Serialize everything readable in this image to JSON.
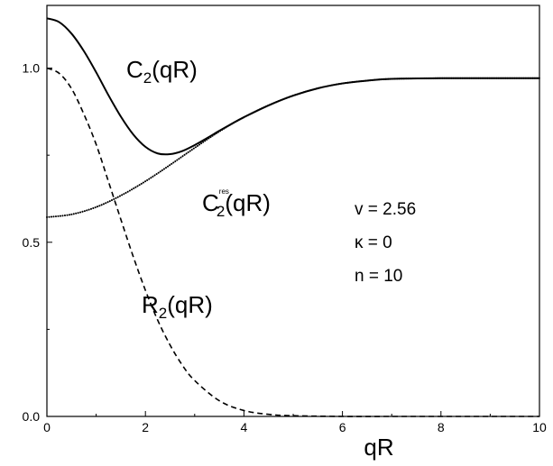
{
  "chart_data": {
    "type": "line",
    "title": "",
    "xlabel": "qR",
    "ylabel": "",
    "xlim": [
      0,
      10
    ],
    "ylim": [
      0,
      1.18
    ],
    "x_ticks": [
      "0",
      "2",
      "4",
      "6",
      "8",
      "10"
    ],
    "y_ticks": [
      "0.0",
      "0.5",
      "1.0"
    ],
    "grid": false,
    "series": [
      {
        "name": "C2(qR)",
        "style": "solid",
        "x": [
          0,
          0.25,
          0.5,
          0.75,
          1,
          1.25,
          1.5,
          1.75,
          2,
          2.25,
          2.5,
          2.75,
          3,
          3.25,
          3.5,
          3.75,
          4,
          4.5,
          5,
          5.5,
          6,
          6.5,
          7,
          8,
          9,
          10
        ],
        "y": [
          1.143,
          1.132,
          1.099,
          1.049,
          0.988,
          0.922,
          0.861,
          0.81,
          0.774,
          0.755,
          0.753,
          0.762,
          0.779,
          0.799,
          0.82,
          0.84,
          0.859,
          0.893,
          0.921,
          0.942,
          0.956,
          0.964,
          0.969,
          0.971,
          0.971,
          0.971
        ]
      },
      {
        "name": "C2res(qR)",
        "style": "dotted",
        "x": [
          0,
          0.5,
          1,
          1.5,
          2,
          2.5,
          3,
          3.5,
          4,
          4.5,
          5,
          5.5,
          6,
          6.5,
          7,
          8,
          9,
          10
        ],
        "y": [
          0.572,
          0.58,
          0.601,
          0.634,
          0.675,
          0.722,
          0.771,
          0.818,
          0.859,
          0.893,
          0.921,
          0.942,
          0.956,
          0.964,
          0.969,
          0.971,
          0.971,
          0.971
        ]
      },
      {
        "name": "R2(qR)",
        "style": "dashed",
        "x": [
          0,
          0.25,
          0.5,
          0.75,
          1,
          1.25,
          1.5,
          1.75,
          2,
          2.25,
          2.5,
          2.75,
          3,
          3.5,
          4,
          4.5,
          5,
          6,
          7,
          8,
          9,
          10
        ],
        "y": [
          1.0,
          0.985,
          0.941,
          0.868,
          0.781,
          0.674,
          0.566,
          0.46,
          0.362,
          0.276,
          0.205,
          0.147,
          0.103,
          0.045,
          0.017,
          0.006,
          0.002,
          0.0,
          0.0,
          0.0,
          0.0,
          0.0
        ]
      }
    ]
  },
  "labels": {
    "c2_main": "C",
    "c2_sub": "2",
    "c2_arg": "(qR)",
    "c2res_main": "C",
    "c2res_sub": "2",
    "c2res_sup": "res",
    "c2res_arg": "(qR)",
    "r2_main": "R",
    "r2_sub": "2",
    "r2_arg": "(qR)"
  },
  "params": {
    "v": "v = 2.56",
    "kappa": "κ =   0",
    "n": "n =  10"
  }
}
